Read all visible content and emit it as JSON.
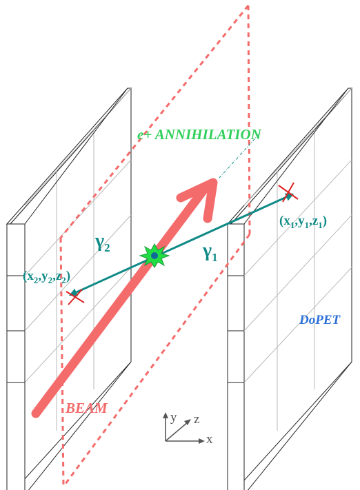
{
  "labels": {
    "annihilation": "e+ ANNIHILATION",
    "detector": "DoPET",
    "beam": "BEAM",
    "gamma1": {
      "symbol": "γ",
      "sub": "1"
    },
    "gamma2": {
      "symbol": "γ",
      "sub": "2"
    },
    "point1": {
      "parts": [
        [
          "(x",
          ""
        ],
        [
          "1",
          "sub"
        ],
        [
          ",y",
          ""
        ],
        [
          "1",
          "sub"
        ],
        [
          ",z",
          ""
        ],
        [
          "1",
          "sub"
        ],
        [
          ")",
          ""
        ]
      ]
    },
    "point2": {
      "parts": [
        [
          "(x",
          ""
        ],
        [
          "2",
          "sub"
        ],
        [
          ",y",
          ""
        ],
        [
          "2",
          "sub"
        ],
        [
          ",z",
          ""
        ],
        [
          "2",
          "sub"
        ],
        [
          ")",
          ""
        ]
      ]
    }
  },
  "axes": {
    "x": "x",
    "y": "y",
    "z": "z"
  },
  "colors": {
    "beam": "#f46b6b",
    "plane": "#f46b6b",
    "gamma": "#0f8a86",
    "gamma_label": "#0f8a86",
    "annihilation_label": "#2fcf5a",
    "burst": "#22dd44",
    "detector_label": "#2b6fd6",
    "beam_label": "#f46b6b",
    "hit_marker": "#e02020",
    "panel_frame": "#222222",
    "panel_grid": "#b8b8b8",
    "axis": "#555555"
  },
  "icons": {
    "hit": "cross-marker",
    "annihilation": "starburst"
  }
}
